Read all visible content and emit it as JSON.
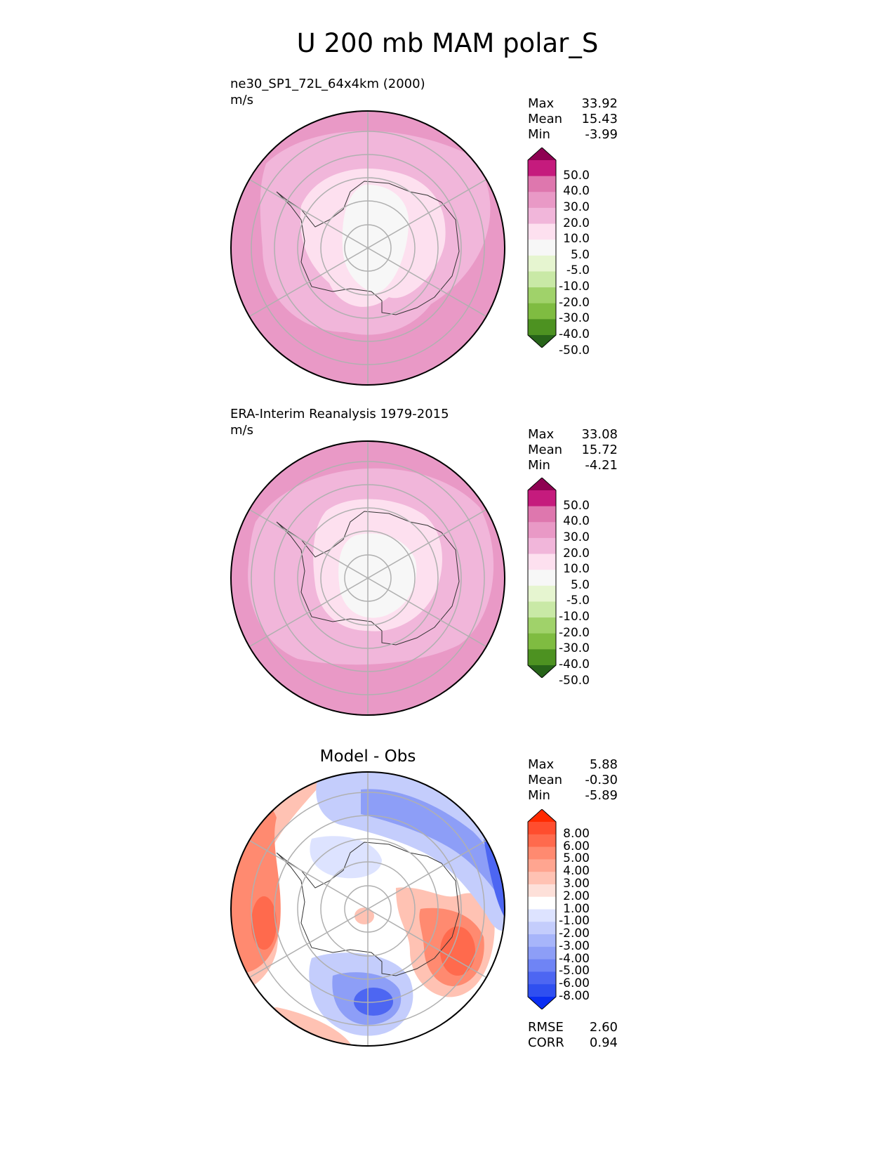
{
  "figure": {
    "title": "U 200 mb MAM polar_S"
  },
  "chart_data": [
    {
      "type": "heatmap",
      "projection": "south-polar-stereographic",
      "title": "ne30_SP1_72L_64x4km (2000)",
      "units": "m/s",
      "stats": [
        {
          "label": "Max",
          "value": "33.92"
        },
        {
          "label": "Mean",
          "value": "15.43"
        },
        {
          "label": "Min",
          "value": "-3.99"
        }
      ],
      "colorbar": {
        "labels": [
          "50.0",
          "40.0",
          "30.0",
          "20.0",
          "10.0",
          "5.0",
          "-5.0",
          "-10.0",
          "-20.0",
          "-30.0",
          "-40.0",
          "-50.0"
        ],
        "colors": [
          "#8e0152",
          "#c51b7d",
          "#de77ae",
          "#e999c6",
          "#f1b6da",
          "#fde0ef",
          "#f7f7f7",
          "#e6f5d0",
          "#c9e9a6",
          "#a0d26a",
          "#7fbc41",
          "#4d9221",
          "#276419"
        ]
      }
    },
    {
      "type": "heatmap",
      "projection": "south-polar-stereographic",
      "title": "ERA-Interim Reanalysis 1979-2015",
      "units": "m/s",
      "stats": [
        {
          "label": "Max",
          "value": "33.08"
        },
        {
          "label": "Mean",
          "value": "15.72"
        },
        {
          "label": "Min",
          "value": "-4.21"
        }
      ],
      "colorbar": {
        "labels": [
          "50.0",
          "40.0",
          "30.0",
          "20.0",
          "10.0",
          "5.0",
          "-5.0",
          "-10.0",
          "-20.0",
          "-30.0",
          "-40.0",
          "-50.0"
        ],
        "colors": [
          "#8e0152",
          "#c51b7d",
          "#de77ae",
          "#e999c6",
          "#f1b6da",
          "#fde0ef",
          "#f7f7f7",
          "#e6f5d0",
          "#c9e9a6",
          "#a0d26a",
          "#7fbc41",
          "#4d9221",
          "#276419"
        ]
      }
    },
    {
      "type": "heatmap",
      "projection": "south-polar-stereographic",
      "title": "Model - Obs",
      "stats": [
        {
          "label": "Max",
          "value": "5.88"
        },
        {
          "label": "Mean",
          "value": "-0.30"
        },
        {
          "label": "Min",
          "value": "-5.89"
        }
      ],
      "extra_stats": [
        {
          "label": "RMSE",
          "value": "2.60"
        },
        {
          "label": "CORR",
          "value": "0.94"
        }
      ],
      "colorbar": {
        "labels": [
          "8.00",
          "6.00",
          "5.00",
          "4.00",
          "3.00",
          "2.00",
          "1.00",
          "-1.00",
          "-2.00",
          "-3.00",
          "-4.00",
          "-5.00",
          "-6.00",
          "-8.00"
        ],
        "colors": [
          "#ff2a00",
          "#ff4d2e",
          "#ff6a4d",
          "#ff8a70",
          "#ffa590",
          "#ffc2b3",
          "#fde0d9",
          "#ffffff",
          "#dde3ff",
          "#c4cdfc",
          "#a7b5fa",
          "#8d9ef7",
          "#6f84f5",
          "#4d66f2",
          "#2f4ff0",
          "#0a2ef2"
        ]
      }
    }
  ]
}
